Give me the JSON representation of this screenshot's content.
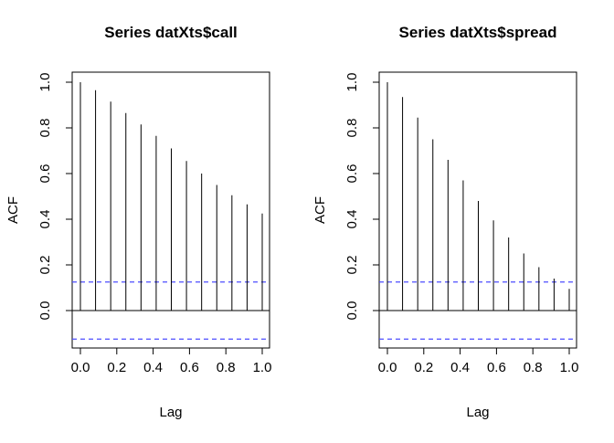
{
  "chart_data": [
    {
      "type": "bar",
      "subtype": "acf-stem",
      "title": "Series  datXts$call",
      "xlabel": "Lag",
      "ylabel": "ACF",
      "xlim": [
        0,
        1.0
      ],
      "ylim": [
        -0.15,
        1.0
      ],
      "xticks": [
        0.0,
        0.2,
        0.4,
        0.6,
        0.8,
        1.0
      ],
      "yticks": [
        0.0,
        0.2,
        0.4,
        0.6,
        0.8,
        1.0
      ],
      "x": [
        0.0,
        0.0833,
        0.1667,
        0.25,
        0.3333,
        0.4167,
        0.5,
        0.5833,
        0.6667,
        0.75,
        0.8333,
        0.9167,
        1.0
      ],
      "values": [
        1.0,
        0.965,
        0.915,
        0.865,
        0.815,
        0.765,
        0.71,
        0.655,
        0.6,
        0.55,
        0.505,
        0.465,
        0.425
      ],
      "confidence_bound": 0.125,
      "bound_color": "#4d4dff"
    },
    {
      "type": "bar",
      "subtype": "acf-stem",
      "title": "Series  datXts$spread",
      "xlabel": "Lag",
      "ylabel": "ACF",
      "xlim": [
        0,
        1.0
      ],
      "ylim": [
        -0.15,
        1.0
      ],
      "xticks": [
        0.0,
        0.2,
        0.4,
        0.6,
        0.8,
        1.0
      ],
      "yticks": [
        0.0,
        0.2,
        0.4,
        0.6,
        0.8,
        1.0
      ],
      "x": [
        0.0,
        0.0833,
        0.1667,
        0.25,
        0.3333,
        0.4167,
        0.5,
        0.5833,
        0.6667,
        0.75,
        0.8333,
        0.9167,
        1.0
      ],
      "values": [
        1.0,
        0.935,
        0.845,
        0.75,
        0.66,
        0.57,
        0.48,
        0.395,
        0.32,
        0.25,
        0.19,
        0.14,
        0.095
      ],
      "confidence_bound": 0.125,
      "bound_color": "#4d4dff"
    }
  ]
}
